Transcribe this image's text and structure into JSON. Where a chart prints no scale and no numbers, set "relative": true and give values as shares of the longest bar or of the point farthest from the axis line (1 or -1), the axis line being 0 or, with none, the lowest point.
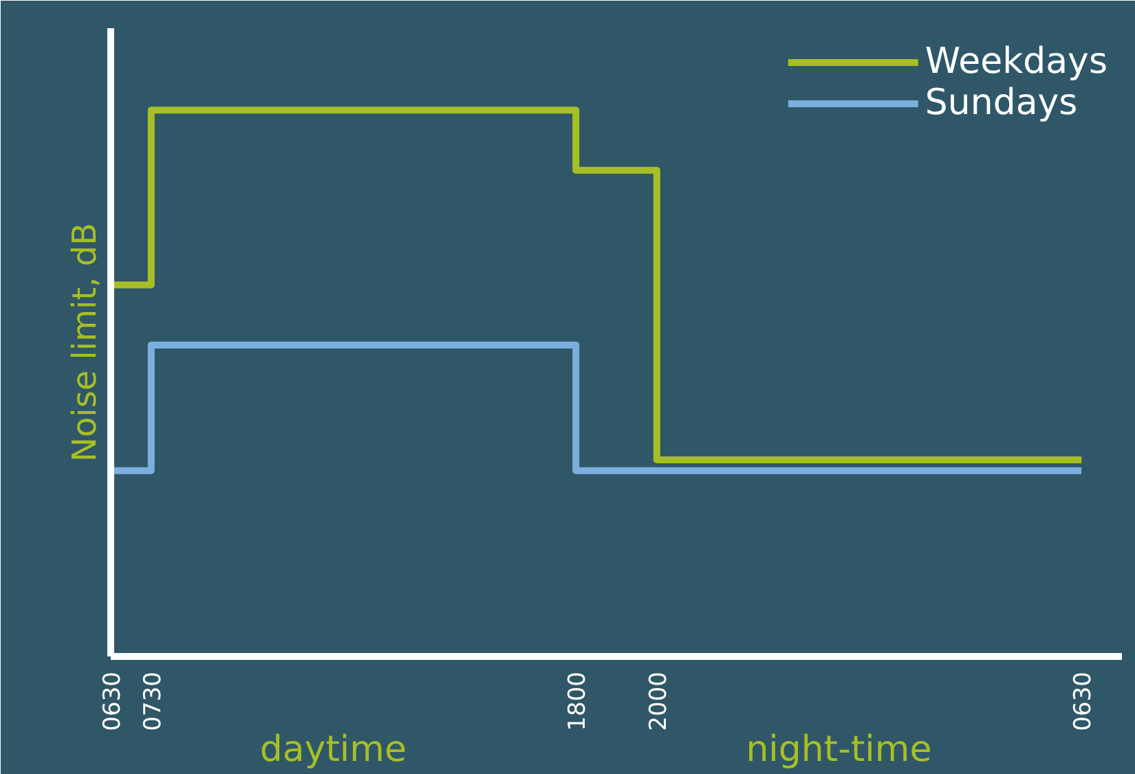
{
  "chart_data": {
    "type": "step",
    "relative": true,
    "ylabel": "Noise limit, dB",
    "categories": [
      "0630",
      null,
      "0730",
      null,
      null,
      null,
      null,
      null,
      null,
      null,
      null,
      null,
      null,
      null,
      null,
      null,
      null,
      null,
      null,
      null,
      null,
      null,
      null,
      "1800",
      null,
      null,
      null,
      "2000",
      null,
      null,
      null,
      null,
      null,
      null,
      null,
      null,
      null,
      null,
      null,
      null,
      null,
      null,
      null,
      null,
      null,
      null,
      null,
      null,
      "0630"
    ],
    "series": [
      {
        "name": "Weekdays",
        "color": "#a7bf24",
        "values": [
          0.68,
          0.68,
          1,
          1,
          1,
          1,
          1,
          1,
          1,
          1,
          1,
          1,
          1,
          1,
          1,
          1,
          1,
          1,
          1,
          1,
          1,
          1,
          1,
          0.89,
          0.89,
          0.89,
          0.89,
          0.36,
          0.36,
          0.36,
          0.36,
          0.36,
          0.36,
          0.36,
          0.36,
          0.36,
          0.36,
          0.36,
          0.36,
          0.36,
          0.36,
          0.36,
          0.36,
          0.36,
          0.36,
          0.36,
          0.36,
          0.36,
          0.36
        ]
      },
      {
        "name": "Sundays",
        "color": "#7aafdf",
        "values": [
          0.34,
          0.34,
          0.57,
          0.57,
          0.57,
          0.57,
          0.57,
          0.57,
          0.57,
          0.57,
          0.57,
          0.57,
          0.57,
          0.57,
          0.57,
          0.57,
          0.57,
          0.57,
          0.57,
          0.57,
          0.57,
          0.57,
          0.57,
          0.34,
          0.34,
          0.34,
          0.34,
          0.34,
          0.34,
          0.34,
          0.34,
          0.34,
          0.34,
          0.34,
          0.34,
          0.34,
          0.34,
          0.34,
          0.34,
          0.34,
          0.34,
          0.34,
          0.34,
          0.34,
          0.34,
          0.34,
          0.34,
          0.34,
          0.34
        ]
      }
    ],
    "annotations": [
      "daytime",
      "night-time"
    ],
    "legend": "top right",
    "grid": false
  }
}
